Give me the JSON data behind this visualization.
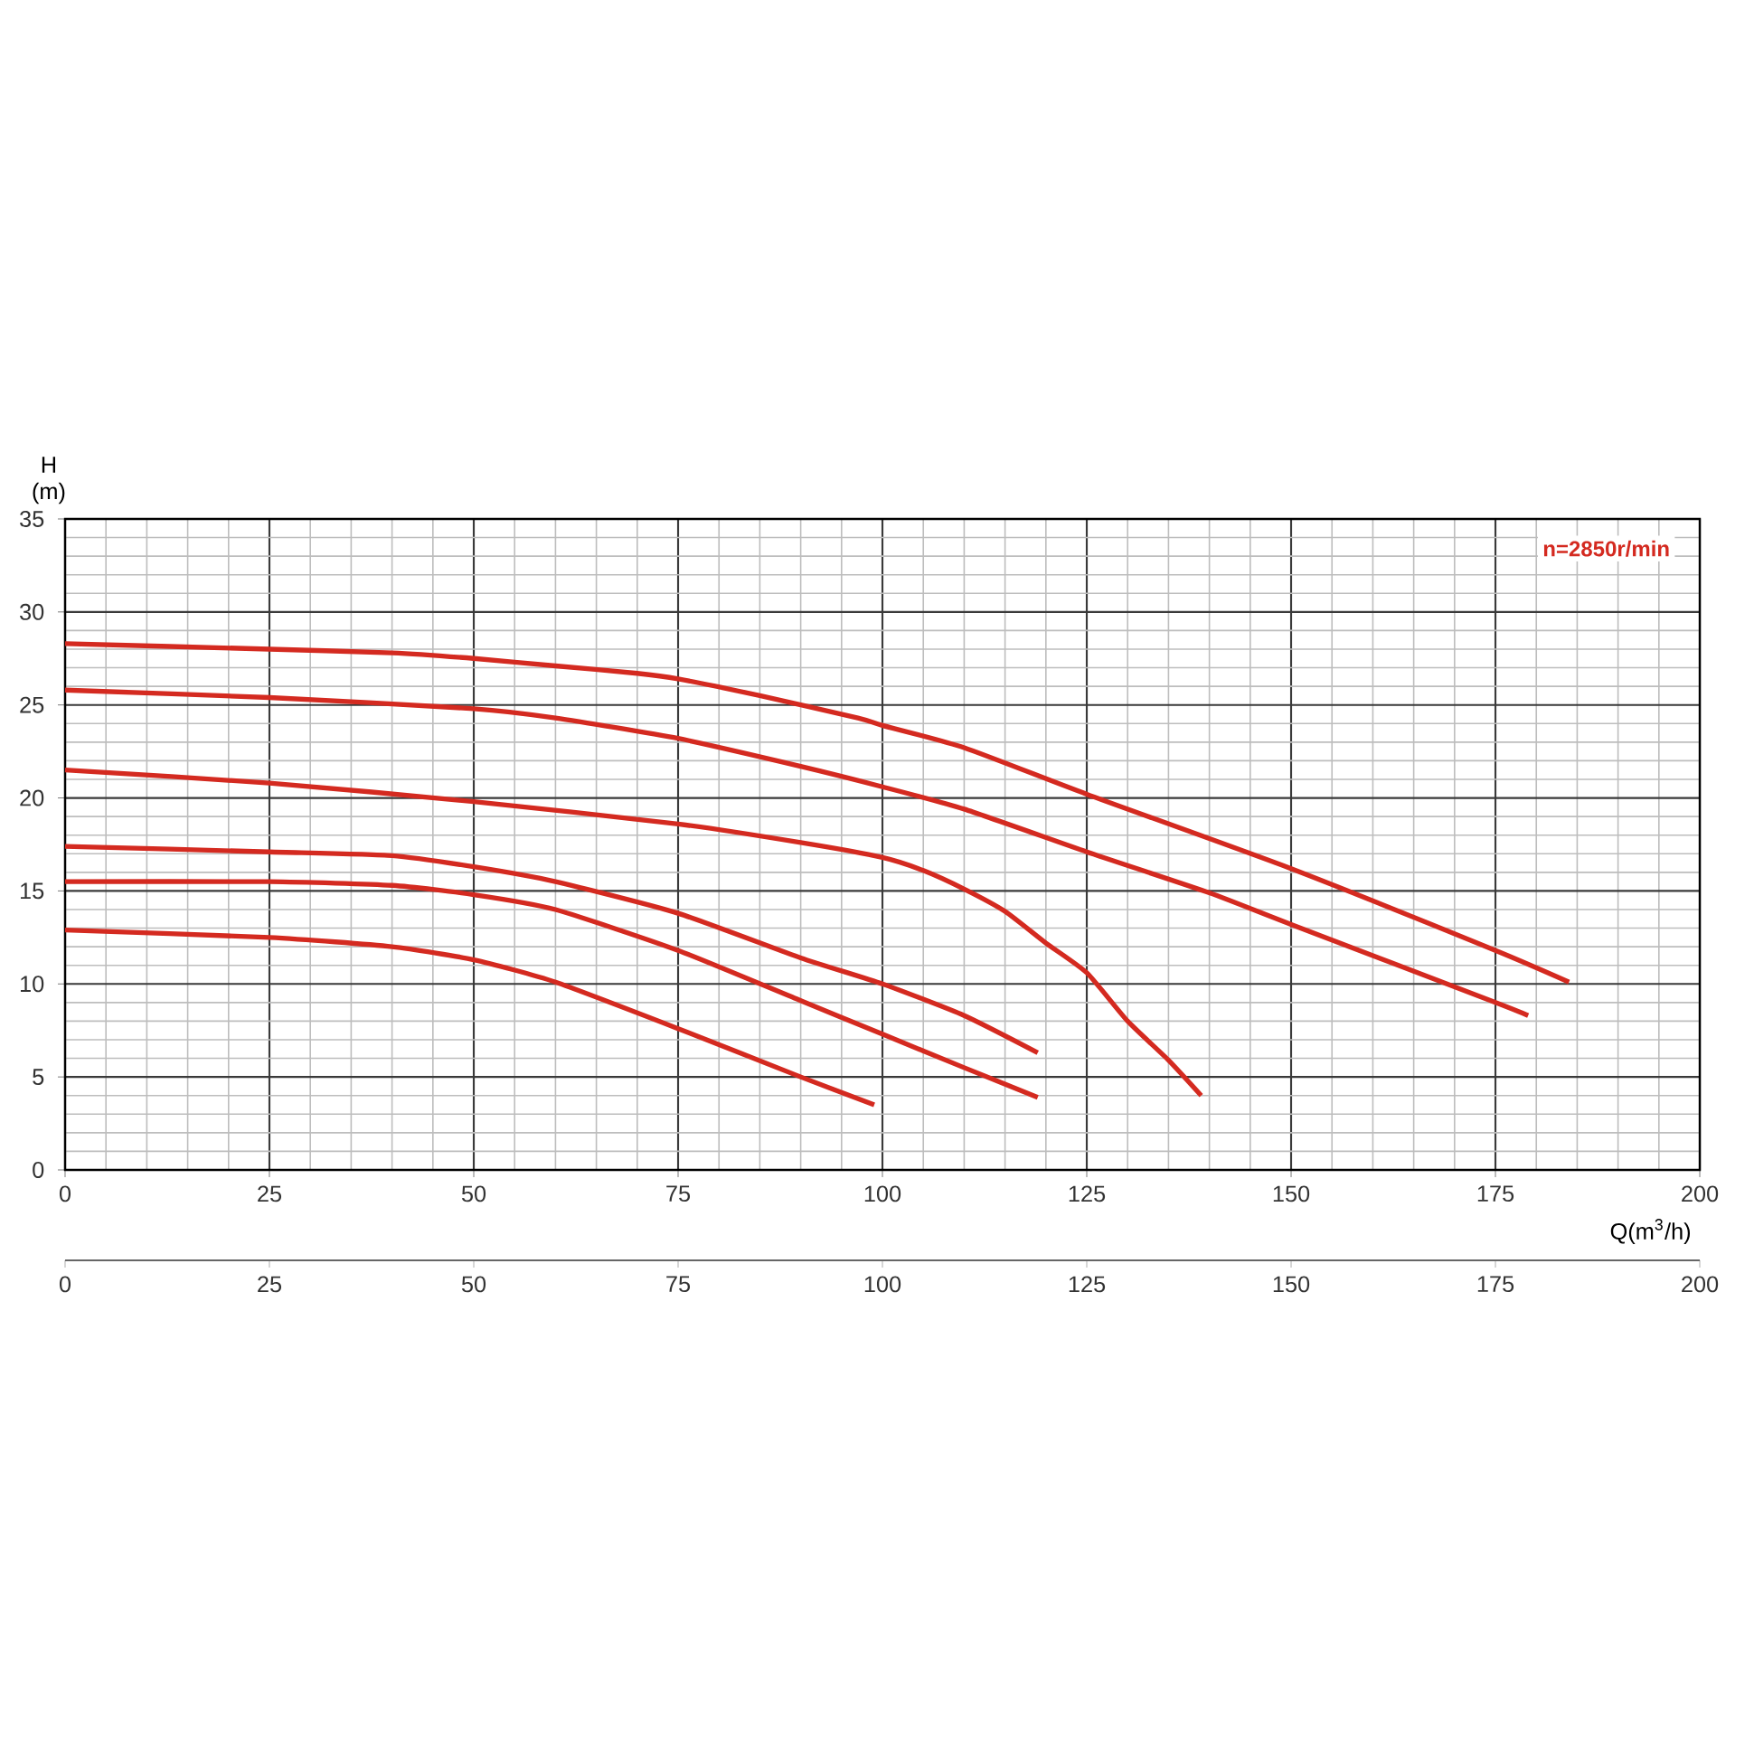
{
  "chart_data": {
    "type": "line",
    "xlabel": "Q(m$^{3}$/h)",
    "ylabel": "H (m)",
    "annotations": [
      "n=2850r/min"
    ],
    "xlim": [
      0,
      200
    ],
    "xticks": [
      0,
      25,
      50,
      75,
      100,
      125,
      150,
      175,
      200
    ],
    "x2lim": [
      0,
      200
    ],
    "x2ticks": [
      0,
      25,
      50,
      75,
      100,
      125,
      150,
      175,
      200
    ],
    "ylim": [
      0,
      35
    ],
    "yticks": [
      0,
      5,
      10,
      15,
      20,
      25,
      30,
      35
    ],
    "grid": true,
    "marker": "none",
    "line_style": "solid",
    "series": [
      {
        "color": "#d42a20",
        "x": [
          0,
          25,
          40,
          50,
          60,
          70,
          75,
          85,
          97,
          100,
          110,
          125,
          150,
          175,
          184
        ],
        "values": [
          28.3,
          28.0,
          27.8,
          27.5,
          27.1,
          26.7,
          26.4,
          25.5,
          24.3,
          23.9,
          22.7,
          20.2,
          16.2,
          11.8,
          10.1
        ]
      },
      {
        "color": "#d42a20",
        "x": [
          0,
          25,
          50,
          60,
          75,
          90,
          100,
          110,
          125,
          140,
          150,
          175,
          179
        ],
        "values": [
          25.8,
          25.4,
          24.8,
          24.3,
          23.2,
          21.7,
          20.6,
          19.4,
          17.1,
          14.9,
          13.2,
          9.0,
          8.3
        ]
      },
      {
        "color": "#d42a20",
        "x": [
          0,
          25,
          50,
          75,
          90,
          100,
          105,
          110,
          115,
          120,
          125,
          130,
          135,
          139
        ],
        "values": [
          21.5,
          20.8,
          19.8,
          18.6,
          17.6,
          16.8,
          16.1,
          15.1,
          13.9,
          12.2,
          10.6,
          8.0,
          5.9,
          4.0
        ]
      },
      {
        "color": "#d42a20",
        "x": [
          0,
          25,
          40,
          50,
          60,
          75,
          90,
          100,
          110,
          119
        ],
        "values": [
          17.4,
          17.1,
          16.9,
          16.3,
          15.5,
          13.8,
          11.4,
          10.0,
          8.3,
          6.3
        ]
      },
      {
        "color": "#d42a20",
        "x": [
          0,
          25,
          40,
          50,
          60,
          75,
          90,
          100,
          110,
          119
        ],
        "values": [
          15.5,
          15.5,
          15.3,
          14.8,
          14.0,
          11.8,
          9.1,
          7.3,
          5.5,
          3.9
        ]
      },
      {
        "color": "#d42a20",
        "x": [
          0,
          25,
          40,
          50,
          60,
          75,
          90,
          99
        ],
        "values": [
          12.9,
          12.5,
          12.0,
          11.3,
          10.1,
          7.6,
          5.0,
          3.5
        ]
      }
    ]
  }
}
